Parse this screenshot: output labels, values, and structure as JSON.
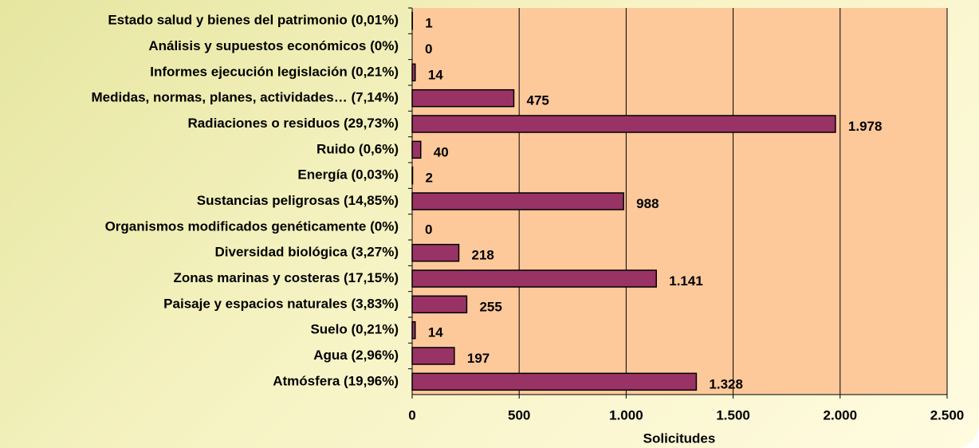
{
  "chart_data": {
    "type": "barh",
    "categories": [
      "Estado salud y bienes del patrimonio  (0,01%)",
      "Análisis y supuestos económicos  (0%)",
      "Informes  ejecución legislación  (0,21%)",
      "Medidas, normas, planes, actividades…  (7,14%)",
      "Radiaciones o residuos  (29,73%)",
      "Ruido  (0,6%)",
      "Energía  (0,03%)",
      "Sustancias peligrosas  (14,85%)",
      "Organismos modificados genéticamente  (0%)",
      "Diversidad biológica  (3,27%)",
      "Zonas marinas y costeras  (17,15%)",
      "Paisaje y espacios naturales  (3,83%)",
      "Suelo  (0,21%)",
      "Agua  (2,96%)",
      "Atmósfera  (19,96%)"
    ],
    "values": [
      1,
      0,
      14,
      475,
      1978,
      40,
      2,
      988,
      0,
      218,
      1141,
      255,
      14,
      197,
      1328
    ],
    "value_labels": [
      "1",
      "0",
      "14",
      "475",
      "1.978",
      "40",
      "2",
      "988",
      "0",
      "218",
      "1.141",
      "255",
      "14",
      "197",
      "1.328"
    ],
    "color": "#993366",
    "xlabel": "Solicitudes",
    "xlim": [
      0,
      2500
    ],
    "xticks": [
      0,
      500,
      {
        "value": 1000,
        "label": "1.000"
      },
      {
        "value": 1500,
        "label": "1.500"
      },
      {
        "value": 2000,
        "label": "2.000"
      },
      {
        "value": 2500,
        "label": "2.500"
      }
    ],
    "grid": true
  }
}
